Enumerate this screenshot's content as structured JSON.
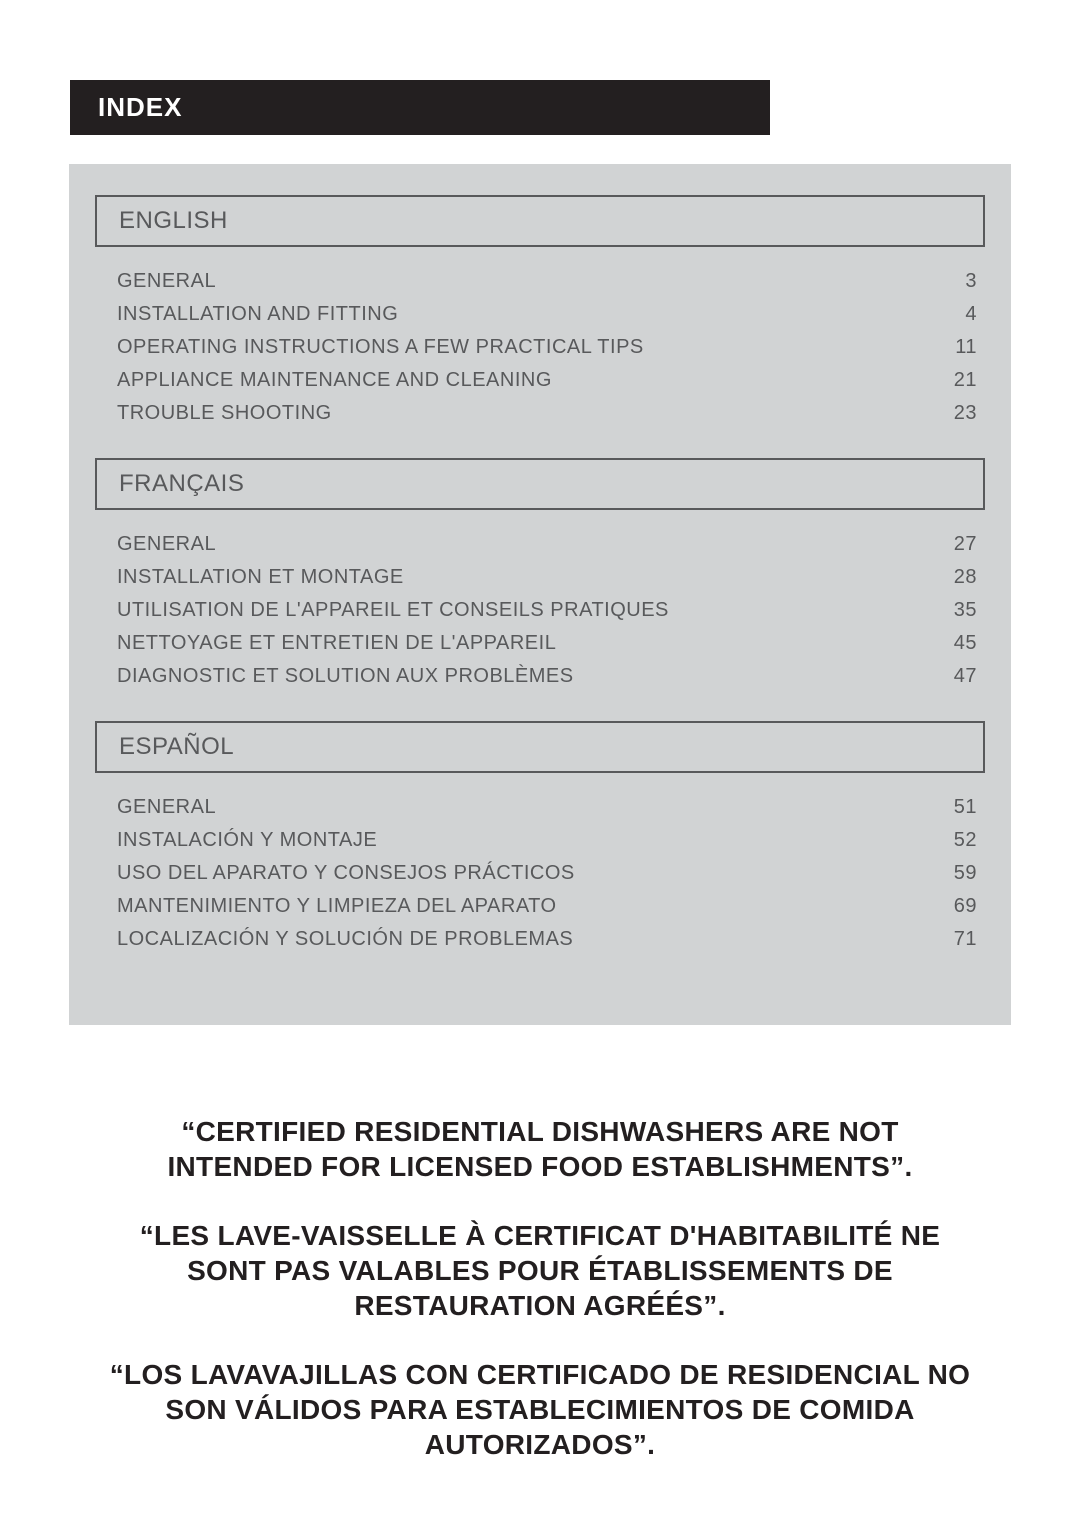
{
  "header": {
    "title": "INDEX"
  },
  "colors": {
    "page_bg": "#ffffff",
    "panel_bg": "#d1d3d4",
    "header_bg": "#231f20",
    "header_text": "#ffffff",
    "body_text": "#58595b",
    "notice_text": "#231f20",
    "border": "#58595b"
  },
  "typography": {
    "header_fontsize": 26,
    "lang_fontsize": 24,
    "toc_fontsize": 20,
    "notice_fontsize": 28,
    "font_family": "Arial"
  },
  "sections": [
    {
      "language": "ENGLISH",
      "items": [
        {
          "title": "GENERAL",
          "page": "3"
        },
        {
          "title": "INSTALLATION AND FITTING",
          "page": "4"
        },
        {
          "title": "OPERATING INSTRUCTIONS A FEW PRACTICAL TIPS",
          "page": "11"
        },
        {
          "title": "APPLIANCE MAINTENANCE AND CLEANING",
          "page": "21"
        },
        {
          "title": "TROUBLE SHOOTING",
          "page": "23"
        }
      ]
    },
    {
      "language": "FRANÇAIS",
      "items": [
        {
          "title": "GENERAL",
          "page": "27"
        },
        {
          "title": "INSTALLATION ET MONTAGE",
          "page": "28"
        },
        {
          "title": "UTILISATION DE L'APPAREIL ET CONSEILS PRATIQUES",
          "page": "35"
        },
        {
          "title": "NETTOYAGE ET ENTRETIEN DE L'APPAREIL",
          "page": "45"
        },
        {
          "title": "DIAGNOSTIC ET SOLUTION AUX PROBLÈMES",
          "page": "47"
        }
      ]
    },
    {
      "language": "ESPAÑOL",
      "items": [
        {
          "title": "GENERAL",
          "page": "51"
        },
        {
          "title": "INSTALACIÓN Y MONTAJE",
          "page": "52"
        },
        {
          "title": "USO DEL APARATO Y CONSEJOS PRÁCTICOS",
          "page": "59"
        },
        {
          "title": "MANTENIMIENTO Y LIMPIEZA DEL APARATO",
          "page": "69"
        },
        {
          "title": "LOCALIZACIÓN Y SOLUCIÓN DE PROBLEMAS",
          "page": "71"
        }
      ]
    }
  ],
  "notices": [
    "“CERTIFIED RESIDENTIAL DISHWASHERS ARE NOT INTENDED FOR LICENSED FOOD ESTABLISHMENTS”.",
    "“LES LAVE-VAISSELLE À CERTIFICAT D'HABITABILITÉ NE SONT PAS VALABLES POUR ÉTABLISSEMENTS DE RESTAURATION AGRÉÉS”.",
    "“LOS LAVAVAJILLAS CON CERTIFICADO DE RESIDENCIAL NO SON VÁLIDOS PARA ESTABLECIMIENTOS DE COMIDA AUTORIZADOS”."
  ]
}
